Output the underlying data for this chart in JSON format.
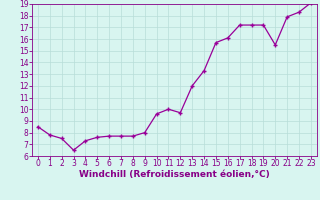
{
  "x": [
    0,
    1,
    2,
    3,
    4,
    5,
    6,
    7,
    8,
    9,
    10,
    11,
    12,
    13,
    14,
    15,
    16,
    17,
    18,
    19,
    20,
    21,
    22,
    23
  ],
  "y": [
    8.5,
    7.8,
    7.5,
    6.5,
    7.3,
    7.6,
    7.7,
    7.7,
    7.7,
    8.0,
    9.6,
    10.0,
    9.7,
    12.0,
    13.3,
    15.7,
    16.1,
    17.2,
    17.2,
    17.2,
    15.5,
    17.9,
    18.3,
    19.1
  ],
  "xlim": [
    -0.5,
    23.5
  ],
  "ylim": [
    6,
    19
  ],
  "xticks": [
    0,
    1,
    2,
    3,
    4,
    5,
    6,
    7,
    8,
    9,
    10,
    11,
    12,
    13,
    14,
    15,
    16,
    17,
    18,
    19,
    20,
    21,
    22,
    23
  ],
  "yticks": [
    6,
    7,
    8,
    9,
    10,
    11,
    12,
    13,
    14,
    15,
    16,
    17,
    18,
    19
  ],
  "xlabel": "Windchill (Refroidissement éolien,°C)",
  "line_color": "#990099",
  "marker_color": "#990099",
  "bg_color": "#d8f5f0",
  "grid_color": "#b8ddd8",
  "tick_color": "#880088",
  "label_color": "#880088",
  "tick_fontsize": 5.5,
  "xlabel_fontsize": 6.5,
  "xlabel_fontweight": "bold"
}
